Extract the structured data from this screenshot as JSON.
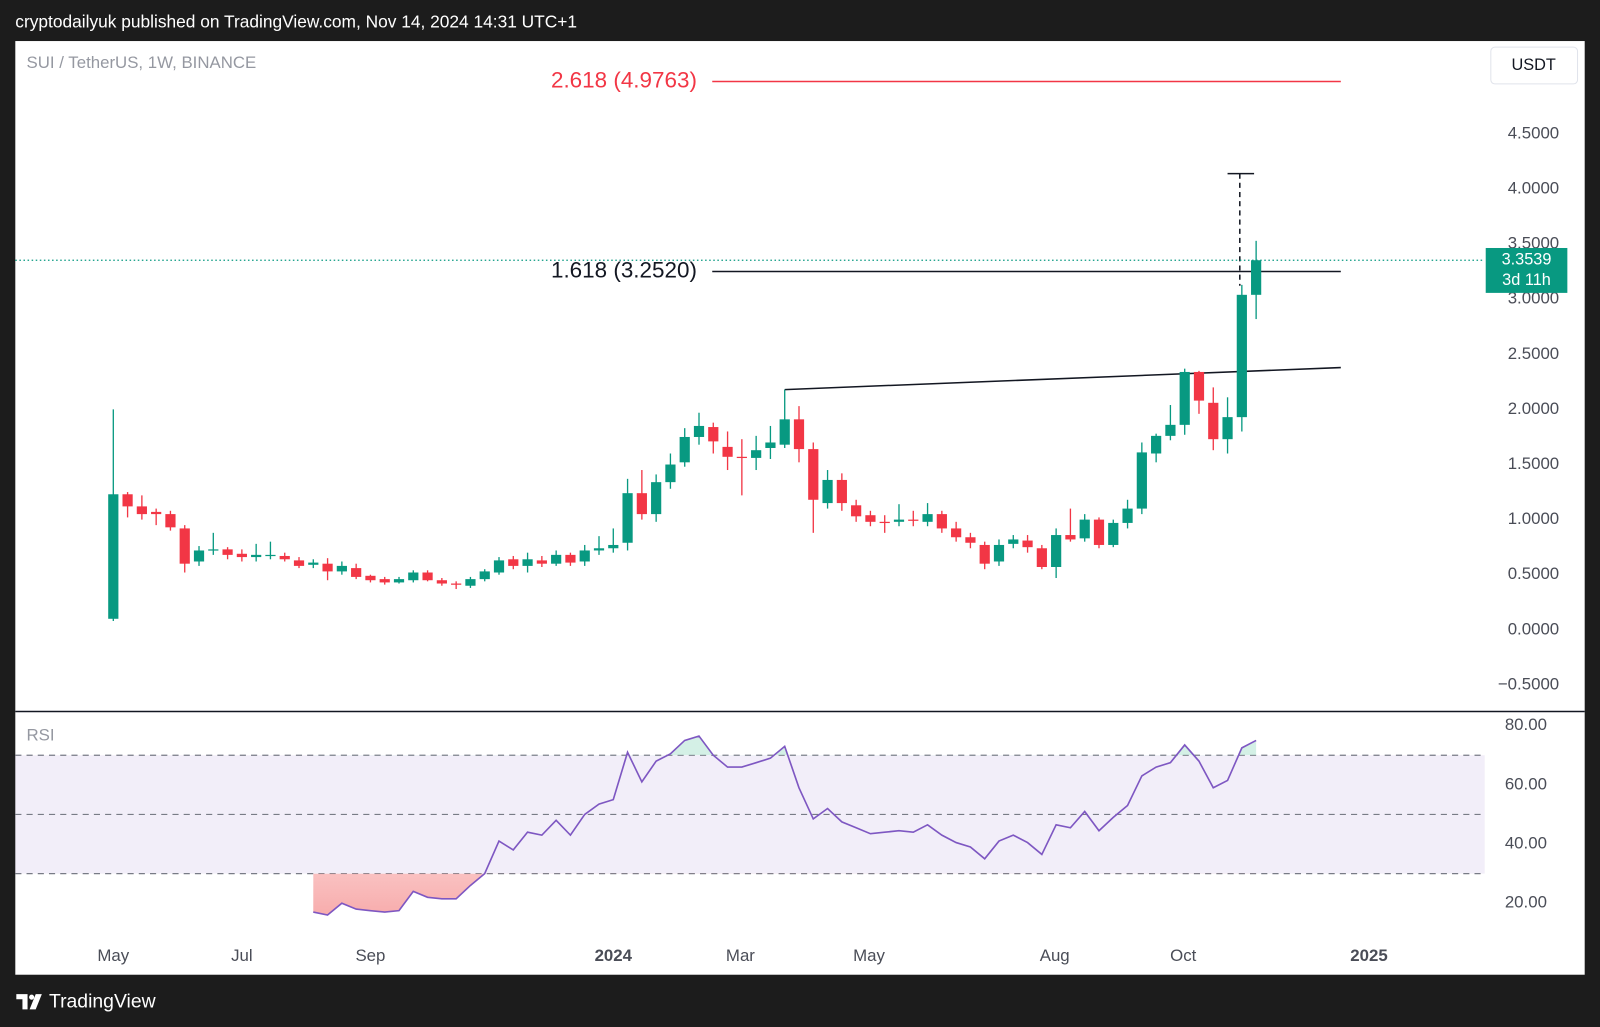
{
  "header": "cryptodailyuk published on TradingView.com, Nov 14, 2024 14:31 UTC+1",
  "footer": "TradingView",
  "chart_data": [
    {
      "type": "candlestick",
      "title": "SUI / TetherUS, 1W, BINANCE",
      "currency": "USDT",
      "countdown": "3d 11h",
      "up_color": "#089981",
      "down_color": "#f23645",
      "open": [
        0.1,
        1.23,
        1.12,
        1.07,
        1.05,
        0.92,
        0.62,
        0.72,
        0.73,
        0.69,
        0.66,
        0.68,
        0.67,
        0.63,
        0.59,
        0.6,
        0.53,
        0.56,
        0.49,
        0.46,
        0.43,
        0.45,
        0.52,
        0.45,
        0.42,
        0.4,
        0.46,
        0.52,
        0.64,
        0.58,
        0.63,
        0.6,
        0.68,
        0.62,
        0.72,
        0.74,
        0.79,
        1.24,
        1.05,
        1.34,
        1.52,
        1.75,
        1.84,
        1.66,
        1.57,
        1.56,
        1.65,
        1.68,
        1.91,
        1.64,
        1.15,
        1.36,
        1.13,
        1.04,
        0.98,
        0.98,
        1.0,
        0.98,
        1.05,
        0.92,
        0.84,
        0.77,
        0.62,
        0.78,
        0.81,
        0.74,
        0.57,
        0.86,
        0.83,
        1.0,
        0.77,
        0.97,
        1.1,
        1.6,
        1.76,
        1.86,
        2.34,
        2.06,
        1.73,
        1.93,
        3.04
      ],
      "high": [
        2.0,
        1.25,
        1.22,
        1.1,
        1.08,
        0.95,
        0.76,
        0.88,
        0.75,
        0.73,
        0.78,
        0.8,
        0.7,
        0.66,
        0.64,
        0.65,
        0.62,
        0.6,
        0.5,
        0.48,
        0.48,
        0.54,
        0.54,
        0.47,
        0.44,
        0.48,
        0.55,
        0.66,
        0.67,
        0.7,
        0.67,
        0.72,
        0.7,
        0.77,
        0.85,
        0.92,
        1.37,
        1.45,
        1.41,
        1.6,
        1.83,
        1.97,
        1.88,
        1.8,
        1.73,
        1.76,
        1.85,
        2.18,
        2.03,
        1.7,
        1.45,
        1.42,
        1.18,
        1.08,
        1.04,
        1.14,
        1.08,
        1.15,
        1.08,
        0.98,
        0.88,
        0.8,
        0.82,
        0.86,
        0.86,
        0.77,
        0.92,
        1.1,
        1.05,
        1.02,
        1.0,
        1.18,
        1.7,
        1.78,
        2.04,
        2.37,
        2.35,
        2.2,
        2.11,
        3.13,
        3.53
      ],
      "low": [
        0.08,
        1.02,
        1.0,
        0.95,
        0.9,
        0.52,
        0.58,
        0.68,
        0.64,
        0.62,
        0.62,
        0.64,
        0.62,
        0.56,
        0.56,
        0.45,
        0.5,
        0.46,
        0.43,
        0.41,
        0.42,
        0.43,
        0.44,
        0.4,
        0.37,
        0.38,
        0.44,
        0.5,
        0.55,
        0.52,
        0.57,
        0.58,
        0.58,
        0.58,
        0.68,
        0.7,
        0.72,
        1.0,
        0.98,
        1.28,
        1.48,
        1.68,
        1.6,
        1.45,
        1.22,
        1.45,
        1.55,
        1.65,
        1.52,
        0.88,
        1.1,
        1.08,
        0.98,
        0.94,
        0.88,
        0.94,
        0.94,
        0.94,
        0.88,
        0.8,
        0.74,
        0.55,
        0.58,
        0.74,
        0.7,
        0.55,
        0.47,
        0.8,
        0.8,
        0.74,
        0.75,
        0.92,
        1.05,
        1.52,
        1.72,
        1.77,
        1.96,
        1.63,
        1.6,
        1.8,
        2.82
      ],
      "close": [
        1.23,
        1.12,
        1.05,
        1.05,
        0.93,
        0.6,
        0.72,
        0.73,
        0.68,
        0.66,
        0.68,
        0.68,
        0.64,
        0.58,
        0.61,
        0.53,
        0.58,
        0.48,
        0.45,
        0.43,
        0.46,
        0.52,
        0.45,
        0.42,
        0.41,
        0.46,
        0.53,
        0.63,
        0.58,
        0.64,
        0.6,
        0.68,
        0.61,
        0.72,
        0.74,
        0.77,
        1.24,
        1.05,
        1.34,
        1.5,
        1.75,
        1.85,
        1.71,
        1.57,
        1.56,
        1.63,
        1.7,
        1.91,
        1.64,
        1.18,
        1.36,
        1.15,
        1.03,
        0.98,
        0.97,
        1.0,
        0.99,
        1.05,
        0.92,
        0.84,
        0.79,
        0.6,
        0.77,
        0.82,
        0.75,
        0.57,
        0.86,
        0.82,
        1.0,
        0.77,
        0.97,
        1.1,
        1.61,
        1.76,
        1.86,
        2.34,
        2.08,
        1.73,
        1.93,
        3.04,
        3.3539
      ],
      "ylim": [
        -0.741,
        5.343
      ],
      "yticks": [
        {
          "value": 4.5,
          "label": "4.5000"
        },
        {
          "value": 4,
          "label": "4.0000"
        },
        {
          "value": 3.5,
          "label": "3.5000"
        },
        {
          "value": 3,
          "label": "3.0000"
        },
        {
          "value": 2.5,
          "label": "2.5000"
        },
        {
          "value": 2,
          "label": "2.0000"
        },
        {
          "value": 1.5,
          "label": "1.5000"
        },
        {
          "value": 1,
          "label": "1.0000"
        },
        {
          "value": 0.5,
          "label": "0.5000"
        },
        {
          "value": 0,
          "label": "0.0000"
        },
        {
          "value": -0.5,
          "label": "−0.5000"
        }
      ],
      "annotations": [
        {
          "label": "2.618 (4.9763)",
          "value": 4.9763,
          "color": "#f23645"
        },
        {
          "label": "1.618 (3.2520)",
          "value": 3.252,
          "color": "#131722"
        }
      ],
      "trendline": [
        2.18,
        2.38
      ],
      "target": 4.14
    },
    {
      "type": "line",
      "title": "RSI",
      "color": "#7e57c2",
      "values": [
        null,
        null,
        null,
        null,
        null,
        null,
        null,
        null,
        null,
        null,
        null,
        null,
        null,
        null,
        17,
        16,
        20,
        18,
        17.5,
        17,
        17.5,
        24,
        22,
        21.5,
        21.5,
        26,
        30,
        41,
        38,
        44,
        43,
        48,
        43,
        50,
        53.5,
        55,
        71,
        61,
        68,
        70.5,
        75,
        76.5,
        70,
        66,
        66,
        67.5,
        69,
        73,
        59,
        48.5,
        52,
        47.5,
        45.5,
        43.5,
        44,
        44.5,
        44,
        46.5,
        43,
        40.5,
        39,
        35,
        41,
        43,
        40.5,
        36.5,
        46.5,
        45.5,
        51,
        44.5,
        49,
        53,
        63,
        66,
        67.5,
        73.5,
        68,
        59,
        61.5,
        72.5,
        75
      ],
      "ylim": [
        7.9,
        84.8
      ],
      "yticks": [
        {
          "value": 80,
          "label": "80.00"
        },
        {
          "value": 60,
          "label": "60.00"
        },
        {
          "value": 40,
          "label": "40.00"
        },
        {
          "value": 20,
          "label": "20.00"
        }
      ],
      "levels": [
        70,
        50,
        30
      ],
      "xlim": [
        -6.86,
        96
      ],
      "xticks": [
        {
          "value": 0,
          "label": "May"
        },
        {
          "value": 9,
          "label": "Jul"
        },
        {
          "value": 18,
          "label": "Sep"
        },
        {
          "value": 35,
          "label": "2024"
        },
        {
          "value": 43.9,
          "label": "Mar"
        },
        {
          "value": 52.9,
          "label": "May"
        },
        {
          "value": 65.9,
          "label": "Aug"
        },
        {
          "value": 74.9,
          "label": "Oct"
        },
        {
          "value": 87.9,
          "label": "2025"
        }
      ]
    }
  ]
}
